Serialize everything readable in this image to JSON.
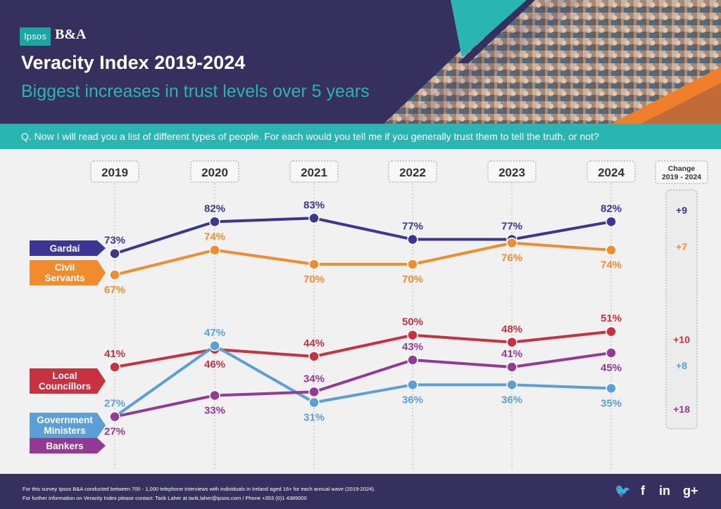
{
  "logo": {
    "ipsos": "Ipsos",
    "ba": "B&A"
  },
  "title": "Veracity Index 2019-2024",
  "subtitle": "Biggest increases in trust levels over 5 years",
  "question": "Q. Now I will read you a list of different types of people. For each would you tell me if you generally trust them to tell the truth, or not?",
  "footer": {
    "note1": "For this survey Ipsos B&A conducted between 700 - 1,000 telephone interviews with individuals in Ireland aged 16+ for each annual wave (2019-2024).",
    "note2": "For further information on Veracity Index please contact: Tarik Laher at tarik.laher@ipsos.com / Phone +353 (0)1 4389000",
    "social": [
      {
        "icon": "twitter-icon",
        "glyph": "🐦"
      },
      {
        "icon": "facebook-icon",
        "glyph": "f"
      },
      {
        "icon": "linkedin-icon",
        "glyph": "in"
      },
      {
        "icon": "google-plus-icon",
        "glyph": "g+"
      }
    ]
  },
  "chart_data": {
    "type": "line",
    "x": [
      "2019",
      "2020",
      "2021",
      "2022",
      "2023",
      "2024"
    ],
    "ylim": [
      20,
      90
    ],
    "unit": "%",
    "change_header": [
      "Change",
      "2019 - 2024"
    ],
    "series": [
      {
        "name": "Gardaí",
        "label_lines": [
          "Gardaí"
        ],
        "color": "#3b3593",
        "values": [
          73,
          82,
          83,
          77,
          77,
          82
        ],
        "change": "+9",
        "label_pos": [
          "above",
          "above",
          "above",
          "above",
          "above",
          "above"
        ]
      },
      {
        "name": "Civil Servants",
        "label_lines": [
          "Civil",
          "Servants"
        ],
        "color": "#f08c2d",
        "values": [
          67,
          74,
          70,
          70,
          76,
          74
        ],
        "change": "+7",
        "label_pos": [
          "below",
          "above",
          "below",
          "below",
          "below",
          "below"
        ]
      },
      {
        "name": "Local Councillors",
        "label_lines": [
          "Local",
          "Councillors"
        ],
        "color": "#c8313f",
        "values": [
          41,
          46,
          44,
          50,
          48,
          51
        ],
        "change": "+10",
        "label_pos": [
          "above",
          "below",
          "above",
          "above",
          "above",
          "above"
        ]
      },
      {
        "name": "Government Ministers",
        "label_lines": [
          "Government",
          "Ministers"
        ],
        "color": "#5a9fd6",
        "values": [
          27,
          47,
          31,
          36,
          36,
          35
        ],
        "change": "+8",
        "label_pos": [
          "above",
          "above",
          "below",
          "below",
          "below",
          "below"
        ]
      },
      {
        "name": "Bankers",
        "label_lines": [
          "Bankers"
        ],
        "color": "#943a93",
        "values": [
          27,
          33,
          34,
          43,
          41,
          45
        ],
        "change": "+18",
        "label_pos": [
          "below",
          "below",
          "above",
          "above",
          "above",
          "below"
        ]
      }
    ]
  }
}
